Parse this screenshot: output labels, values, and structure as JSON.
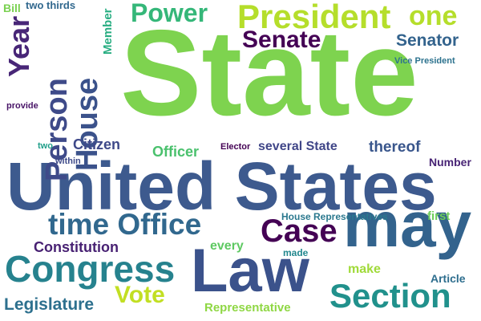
{
  "words": [
    {
      "text": "State",
      "color": "#7ed34f",
      "vertical": false
    },
    {
      "text": "United States",
      "color": "#3d5a8e",
      "vertical": false
    },
    {
      "text": "may",
      "color": "#33638d",
      "vertical": false
    },
    {
      "text": "Law",
      "color": "#3b528b",
      "vertical": false
    },
    {
      "text": "President",
      "color": "#b5de2b",
      "vertical": false
    },
    {
      "text": "Congress",
      "color": "#26828e",
      "vertical": false
    },
    {
      "text": "Section",
      "color": "#21918c",
      "vertical": false
    },
    {
      "text": "time Office",
      "color": "#31688e",
      "vertical": false
    },
    {
      "text": "Case",
      "color": "#440154",
      "vertical": false
    },
    {
      "text": "Person",
      "color": "#3e4a89",
      "vertical": true
    },
    {
      "text": "House",
      "color": "#3b528b",
      "vertical": true
    },
    {
      "text": "Year",
      "color": "#482677",
      "vertical": true
    },
    {
      "text": "Power",
      "color": "#35b779",
      "vertical": false
    },
    {
      "text": "one",
      "color": "#b5de2b",
      "vertical": false
    },
    {
      "text": "Senate",
      "color": "#440154",
      "vertical": false
    },
    {
      "text": "Senator",
      "color": "#33638d",
      "vertical": false
    },
    {
      "text": "Vice President",
      "color": "#2c728e",
      "vertical": false
    },
    {
      "text": "Vote",
      "color": "#c2df23",
      "vertical": false
    },
    {
      "text": "Legislature",
      "color": "#2d708e",
      "vertical": false
    },
    {
      "text": "Constitution",
      "color": "#482173",
      "vertical": false
    },
    {
      "text": "Citizen",
      "color": "#3e4989",
      "vertical": false
    },
    {
      "text": "Officer",
      "color": "#4ac16d",
      "vertical": false
    },
    {
      "text": "thereof",
      "color": "#39568c",
      "vertical": false
    },
    {
      "text": "several State",
      "color": "#404688",
      "vertical": false
    },
    {
      "text": "Elector",
      "color": "#440154",
      "vertical": false
    },
    {
      "text": "Number",
      "color": "#482475",
      "vertical": false
    },
    {
      "text": "House Representatives",
      "color": "#2a788e",
      "vertical": false
    },
    {
      "text": "first",
      "color": "#6ccd5a",
      "vertical": false
    },
    {
      "text": "every",
      "color": "#5ec962",
      "vertical": false
    },
    {
      "text": "made",
      "color": "#23888e",
      "vertical": false
    },
    {
      "text": "make",
      "color": "#a0da39",
      "vertical": false
    },
    {
      "text": "Article",
      "color": "#2e6e8e",
      "vertical": false
    },
    {
      "text": "Representative",
      "color": "#8fd744",
      "vertical": false
    },
    {
      "text": "Member",
      "color": "#27ad81",
      "vertical": true
    },
    {
      "text": "two thirds",
      "color": "#31688e",
      "vertical": false
    },
    {
      "text": "Bill",
      "color": "#7ad151",
      "vertical": false
    },
    {
      "text": "provide",
      "color": "#481467",
      "vertical": false
    },
    {
      "text": "two",
      "color": "#1f9e89",
      "vertical": false
    },
    {
      "text": "within",
      "color": "#3e4a89",
      "vertical": false
    }
  ]
}
